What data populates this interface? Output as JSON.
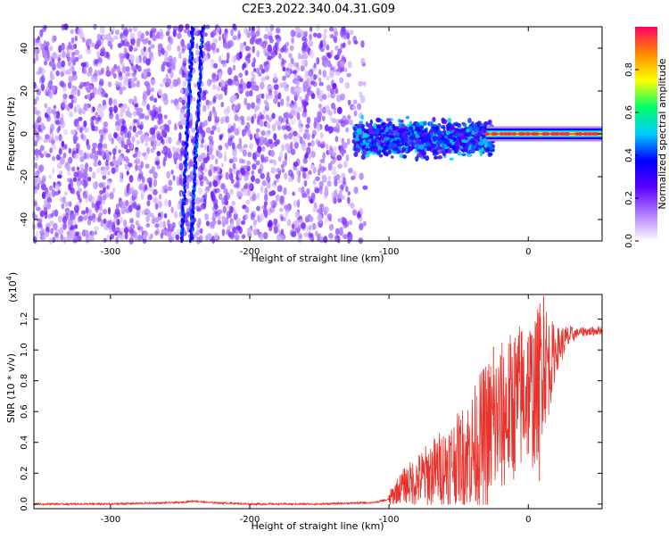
{
  "title": "C2E3.2022.340.04.31.G09",
  "colors": {
    "snr_line": "#e8322c",
    "signal_core": "#ff0033",
    "noise": "#7a1cf0",
    "axis": "#000000"
  },
  "chart_data": [
    {
      "type": "heatmap",
      "title": "C2E3.2022.340.04.31.G09",
      "xlabel": "Height of straight line (km)",
      "ylabel": "Frequency (Hz)",
      "xlim": [
        -355,
        53
      ],
      "ylim": [
        -50,
        50
      ],
      "xticks": [
        -300,
        -200,
        -100,
        0
      ],
      "yticks": [
        -40,
        -20,
        0,
        20,
        40
      ],
      "colorbar": {
        "label": "Normalized spectral amplitude",
        "range": [
          0,
          1
        ],
        "ticks": [
          0.0,
          0.2,
          0.4,
          0.6,
          0.8
        ],
        "tick_labels": [
          "0.0",
          "0.2",
          "0.4",
          "0.6",
          "0.8"
        ],
        "colors": [
          "#ffffff",
          "#b07cff",
          "#5b00ff",
          "#0000ff",
          "#00ccff",
          "#00ff66",
          "#ffff00",
          "#ff8800",
          "#ff0066"
        ]
      },
      "regions": [
        {
          "name": "scattered noise",
          "x_range": [
            -355,
            -115
          ],
          "freq_range": [
            -50,
            50
          ],
          "amplitude": 0.05
        },
        {
          "name": "multipath band",
          "x_range": [
            -125,
            -25
          ],
          "freq_range": [
            -10,
            8
          ],
          "amplitude": 0.2
        },
        {
          "name": "direct signal core",
          "x_range": [
            -30,
            53
          ],
          "freq_range": [
            -1.5,
            1.5
          ],
          "amplitude": 0.9
        }
      ],
      "streaks": [
        {
          "x": -245,
          "freq_range": [
            -50,
            50
          ]
        },
        {
          "x": -238,
          "freq_range": [
            -50,
            50
          ]
        }
      ]
    },
    {
      "type": "line",
      "xlabel": "Height of straight line (km)",
      "ylabel": "SNR (10 * v/v)",
      "y_scale_label": "(x10",
      "y_scale_exp": "4",
      "y_scale_close": ")",
      "xlim": [
        -355,
        53
      ],
      "ylim": [
        -0.03,
        1.36
      ],
      "xticks": [
        -300,
        -200,
        -100,
        0
      ],
      "yticks": [
        0.0,
        0.2,
        0.4,
        0.6,
        0.8,
        1.0,
        1.2
      ],
      "ytick_labels": [
        "0.0",
        "0.2",
        "0.4",
        "0.6",
        "0.8",
        "1.0",
        "1.2"
      ],
      "series": [
        {
          "name": "SNR",
          "x": [
            -355,
            -300,
            -250,
            -240,
            -230,
            -200,
            -150,
            -110,
            -100,
            -95,
            -90,
            -80,
            -70,
            -60,
            -50,
            -40,
            -30,
            -20,
            -10,
            0,
            5,
            10,
            15,
            20,
            25,
            30,
            35,
            40,
            45,
            53
          ],
          "y": [
            0.0,
            0.0,
            0.01,
            0.02,
            0.01,
            0.0,
            0.0,
            0.01,
            0.03,
            0.08,
            0.12,
            0.15,
            0.2,
            0.25,
            0.3,
            0.35,
            0.45,
            0.55,
            0.65,
            0.75,
            0.7,
            0.95,
            0.9,
            1.0,
            1.05,
            1.09,
            1.11,
            1.12,
            1.12,
            1.13
          ],
          "noise_envelope": [
            {
              "x": -100,
              "amp": 0.05
            },
            {
              "x": -75,
              "amp": 0.2
            },
            {
              "x": -50,
              "amp": 0.3
            },
            {
              "x": -30,
              "amp": 0.5
            },
            {
              "x": -10,
              "amp": 0.5
            },
            {
              "x": 10,
              "amp": 0.5
            },
            {
              "x": 20,
              "amp": 0.15
            },
            {
              "x": 35,
              "amp": 0.03
            }
          ],
          "spikes": [
            {
              "x": 11,
              "y": 1.35
            },
            {
              "x": -25,
              "y": 1.02
            },
            {
              "x": 8,
              "y": 0.15
            }
          ]
        }
      ]
    }
  ]
}
